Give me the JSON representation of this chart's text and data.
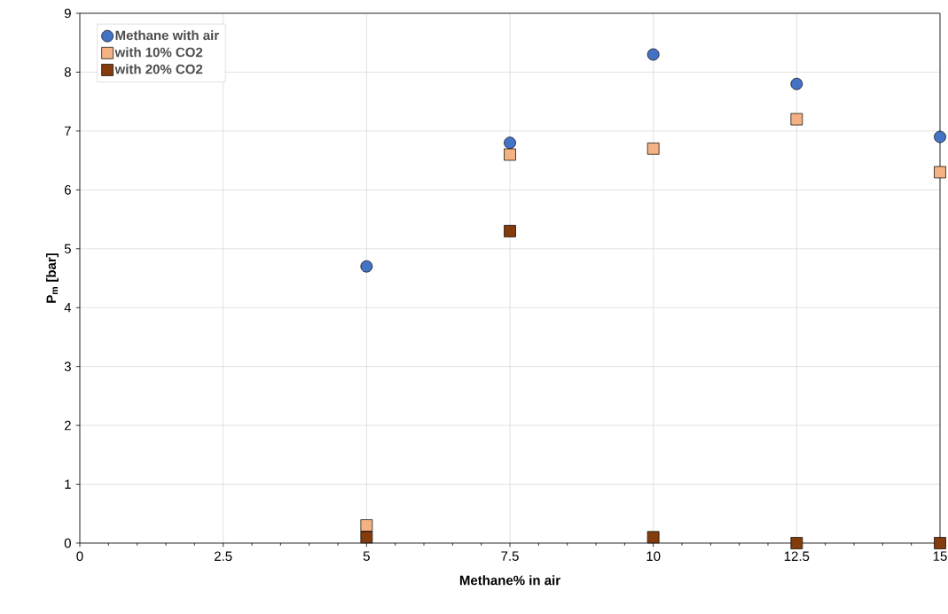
{
  "chart_data": {
    "type": "scatter",
    "xlabel": "Methane% in air",
    "ylabel": "P$_{m}$ [bar]",
    "x": [
      5,
      7.5,
      10,
      12.5,
      15
    ],
    "series": [
      {
        "name": "Methane with air",
        "color": "#4472c4",
        "marker": "circle",
        "values": [
          4.7,
          6.8,
          8.3,
          7.8,
          6.9
        ]
      },
      {
        "name": "with 10% CO2",
        "color": "#f4b183",
        "marker": "square",
        "values": [
          0.3,
          6.6,
          6.7,
          7.2,
          6.3
        ]
      },
      {
        "name": "with 20% CO2",
        "color": "#843c0c",
        "marker": "square",
        "values": [
          0.1,
          5.3,
          0.1,
          0,
          0
        ]
      }
    ],
    "xlim": [
      0,
      15
    ],
    "xticks": [
      0,
      2.5,
      5,
      7.5,
      10,
      12.5,
      15
    ],
    "ylim": [
      0,
      9
    ],
    "yticks": [
      0,
      1,
      2,
      3,
      4,
      5,
      6,
      7,
      8,
      9
    ],
    "grid": true,
    "legend": "top left"
  }
}
